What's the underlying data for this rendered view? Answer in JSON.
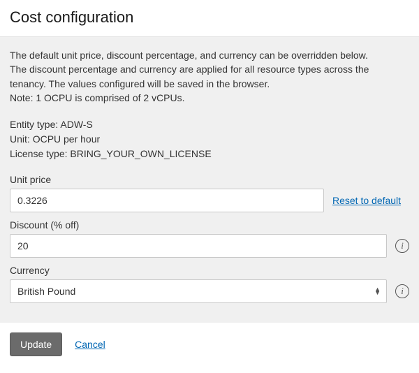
{
  "header": {
    "title": "Cost configuration"
  },
  "description": {
    "line1": "The default unit price, discount percentage, and currency can be overridden below.",
    "line2": "The discount percentage and currency are applied for all resource types across the",
    "line3": "tenancy. The values configured will be saved in the browser.",
    "note": "Note: 1 OCPU is comprised of 2 vCPUs."
  },
  "meta": {
    "entity_label": "Entity type:",
    "entity_value": "ADW-S",
    "unit_label": "Unit:",
    "unit_value": "OCPU per hour",
    "license_label": "License type:",
    "license_value": "BRING_YOUR_OWN_LICENSE"
  },
  "fields": {
    "unit_price": {
      "label": "Unit price",
      "value": "0.3226",
      "reset": "Reset to default"
    },
    "discount": {
      "label": "Discount (% off)",
      "value": "20"
    },
    "currency": {
      "label": "Currency",
      "selected": "British Pound"
    }
  },
  "actions": {
    "update": "Update",
    "cancel": "Cancel"
  },
  "icons": {
    "info_glyph": "i"
  }
}
